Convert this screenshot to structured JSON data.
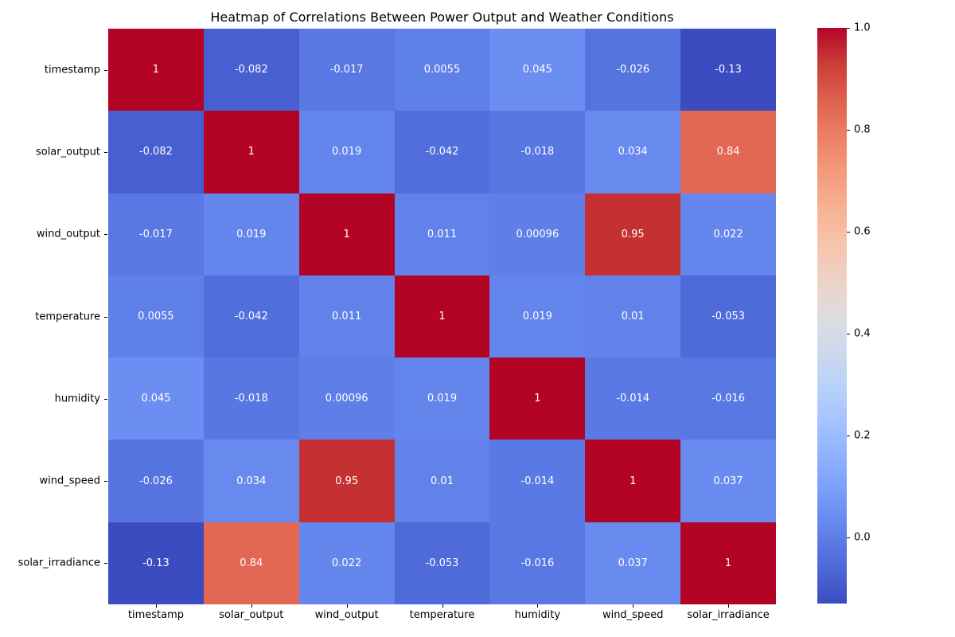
{
  "figure": {
    "title": "Heatmap of Correlations Between Power Output and Weather Conditions",
    "background_color": "#ffffff",
    "text_color": "#000000"
  },
  "chart_data": {
    "type": "heatmap",
    "title": "Heatmap of Correlations Between Power Output and Weather Conditions",
    "x_labels": [
      "timestamp",
      "solar_output",
      "wind_output",
      "temperature",
      "humidity",
      "wind_speed",
      "solar_irradiance"
    ],
    "y_labels": [
      "timestamp",
      "solar_output",
      "wind_output",
      "temperature",
      "humidity",
      "wind_speed",
      "solar_irradiance"
    ],
    "matrix": [
      [
        1,
        -0.082,
        -0.017,
        0.0055,
        0.045,
        -0.026,
        -0.13
      ],
      [
        -0.082,
        1,
        0.019,
        -0.042,
        -0.018,
        0.034,
        0.84
      ],
      [
        -0.017,
        0.019,
        1,
        0.011,
        0.00096,
        0.95,
        0.022
      ],
      [
        0.0055,
        -0.042,
        0.011,
        1,
        0.019,
        0.01,
        -0.053
      ],
      [
        0.045,
        -0.018,
        0.00096,
        0.019,
        1,
        -0.014,
        -0.016
      ],
      [
        -0.026,
        0.034,
        0.95,
        0.01,
        -0.014,
        1,
        0.037
      ],
      [
        -0.13,
        0.84,
        0.022,
        -0.053,
        -0.016,
        0.037,
        1
      ]
    ],
    "annotations": [
      [
        "1",
        "-0.082",
        "-0.017",
        "0.0055",
        "0.045",
        "-0.026",
        "-0.13"
      ],
      [
        "-0.082",
        "1",
        "0.019",
        "-0.042",
        "-0.018",
        "0.034",
        "0.84"
      ],
      [
        "-0.017",
        "0.019",
        "1",
        "0.011",
        "0.00096",
        "0.95",
        "0.022"
      ],
      [
        "0.0055",
        "-0.042",
        "0.011",
        "1",
        "0.019",
        "0.01",
        "-0.053"
      ],
      [
        "0.045",
        "-0.018",
        "0.00096",
        "0.019",
        "1",
        "-0.014",
        "-0.016"
      ],
      [
        "-0.026",
        "0.034",
        "0.95",
        "0.01",
        "-0.014",
        "1",
        "0.037"
      ],
      [
        "-0.13",
        "0.84",
        "0.022",
        "-0.053",
        "-0.016",
        "0.037",
        "1"
      ]
    ],
    "annotation_text_color": "#ffffff",
    "vmin": -0.13,
    "vmax": 1.0,
    "colormap": "coolwarm",
    "colormap_stops": {
      "low": "#3b4cc0",
      "mid": "#dddddd",
      "high": "#b40426"
    },
    "grid": false,
    "legend_position": "right",
    "colorbar": {
      "tick_labels": [
        "1.0",
        "0.8",
        "0.6",
        "0.4",
        "0.2",
        "0.0"
      ],
      "tick_values": [
        1.0,
        0.8,
        0.6,
        0.4,
        0.2,
        0.0
      ]
    }
  }
}
